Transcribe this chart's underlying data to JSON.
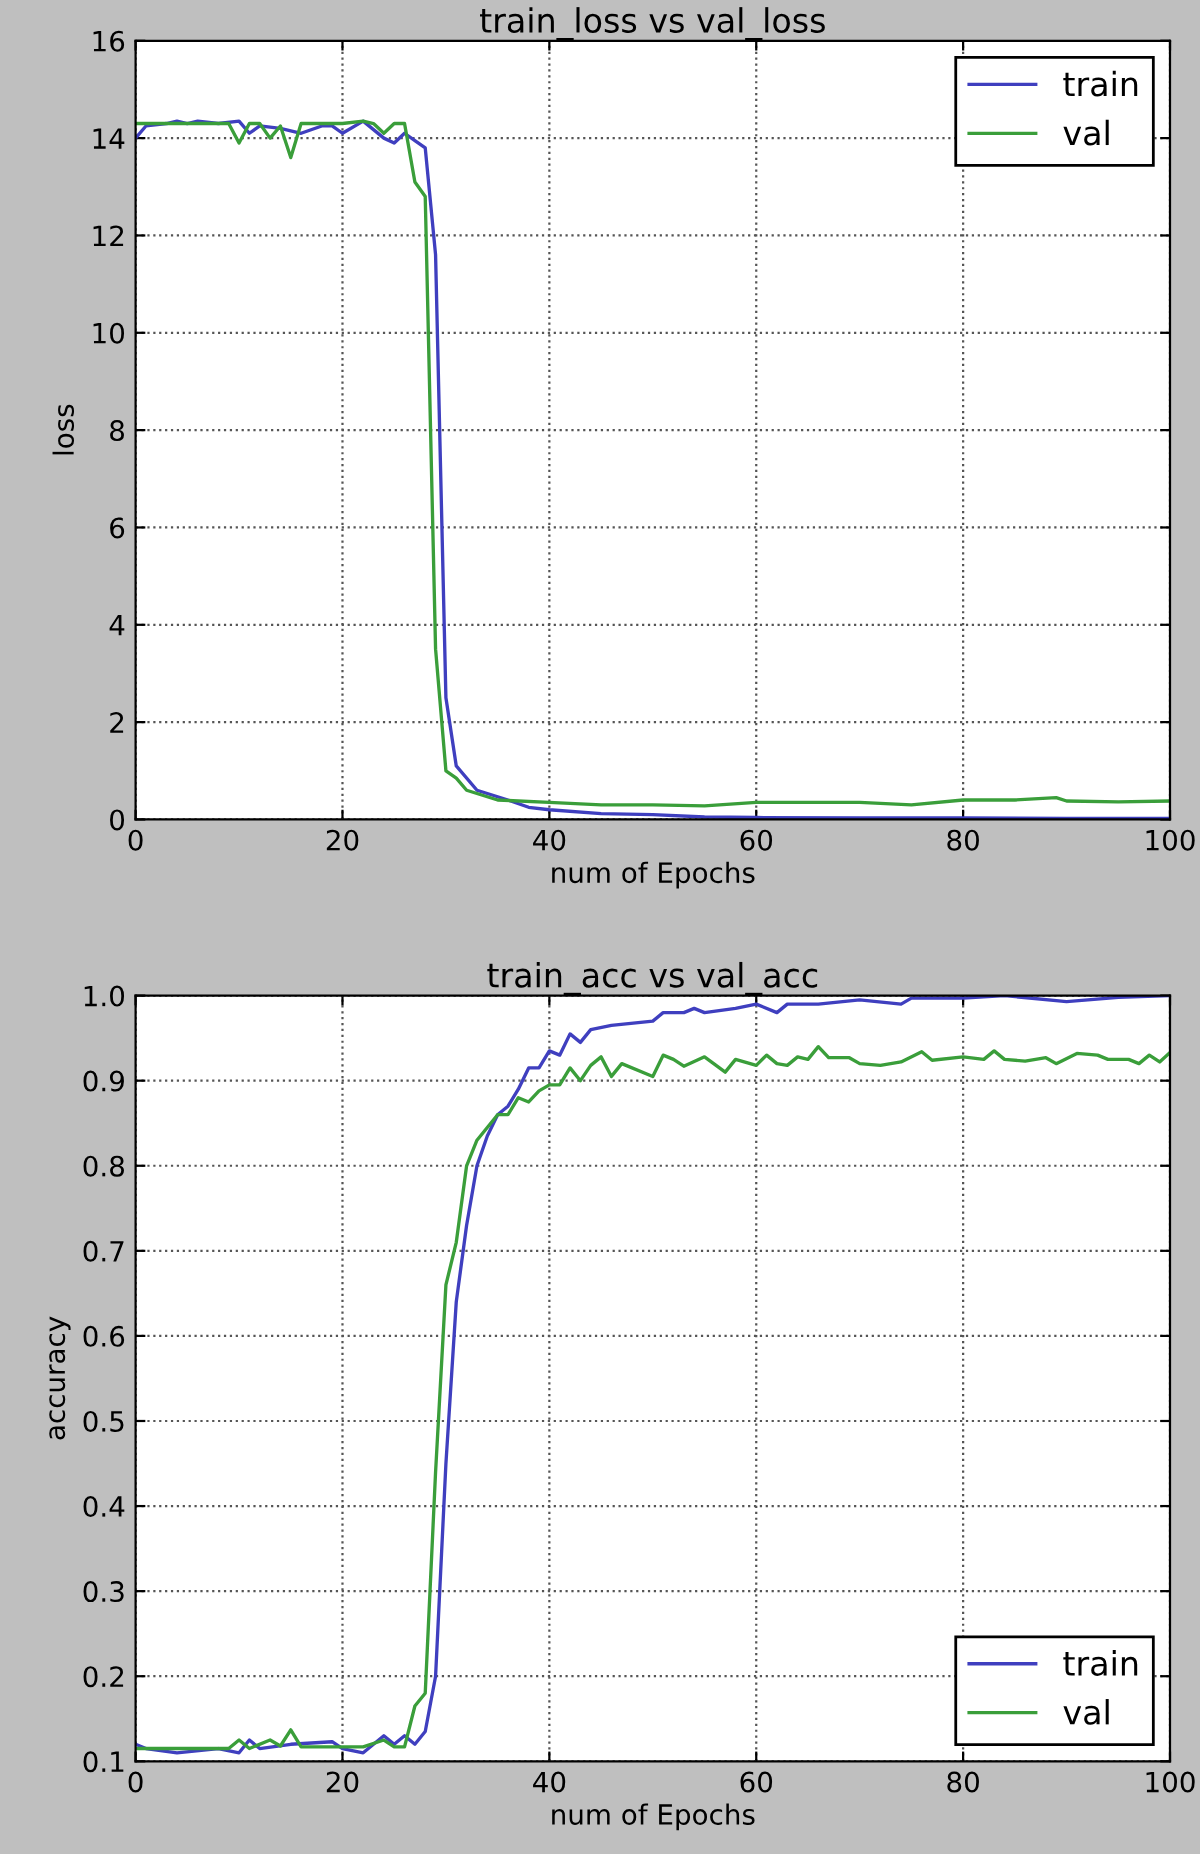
{
  "chart_data": [
    {
      "type": "line",
      "title": "train_loss vs val_loss",
      "xlabel": "num of Epochs",
      "ylabel": "loss",
      "xlim": [
        0,
        100
      ],
      "xticks": [
        0,
        20,
        40,
        60,
        80,
        100
      ],
      "ylim": [
        0,
        16
      ],
      "yticks": [
        0,
        2,
        4,
        6,
        8,
        10,
        12,
        14,
        16
      ],
      "grid": true,
      "legend": "top right",
      "line_style": "solid",
      "series": [
        {
          "name": "train",
          "color": "#3f3fbf",
          "x": [
            0,
            1,
            3,
            4,
            5,
            6,
            8,
            10,
            11,
            12,
            14,
            16,
            18,
            19,
            20,
            22,
            24,
            25,
            26,
            27,
            28,
            29,
            30,
            31,
            33,
            36,
            38,
            40,
            45,
            50,
            55,
            60,
            70,
            80,
            90,
            100
          ],
          "values": [
            14.0,
            14.25,
            14.3,
            14.35,
            14.3,
            14.35,
            14.3,
            14.35,
            14.1,
            14.25,
            14.2,
            14.1,
            14.25,
            14.25,
            14.1,
            14.35,
            14.0,
            13.9,
            14.1,
            13.95,
            13.8,
            11.6,
            2.5,
            1.1,
            0.6,
            0.4,
            0.25,
            0.2,
            0.12,
            0.1,
            0.05,
            0.04,
            0.03,
            0.03,
            0.02,
            0.02
          ]
        },
        {
          "name": "val",
          "color": "#3a9e3a",
          "x": [
            0,
            5,
            9,
            10,
            11,
            12,
            13,
            14,
            15,
            16,
            18,
            20,
            22,
            23,
            24,
            25,
            26,
            27,
            28,
            29,
            30,
            31,
            32,
            35,
            40,
            45,
            50,
            55,
            60,
            65,
            70,
            75,
            80,
            85,
            89,
            90,
            95,
            100
          ],
          "values": [
            14.3,
            14.3,
            14.3,
            13.9,
            14.3,
            14.3,
            14.0,
            14.25,
            13.6,
            14.3,
            14.3,
            14.3,
            14.35,
            14.3,
            14.1,
            14.3,
            14.3,
            13.1,
            12.8,
            3.5,
            1.0,
            0.85,
            0.6,
            0.4,
            0.35,
            0.3,
            0.3,
            0.28,
            0.35,
            0.35,
            0.35,
            0.3,
            0.4,
            0.4,
            0.45,
            0.38,
            0.36,
            0.38
          ]
        }
      ]
    },
    {
      "type": "line",
      "title": "train_acc vs val_acc",
      "xlabel": "num of Epochs",
      "ylabel": "accuracy",
      "xlim": [
        0,
        100
      ],
      "xticks": [
        0,
        20,
        40,
        60,
        80,
        100
      ],
      "ylim": [
        0.1,
        1.0
      ],
      "yticks": [
        0.1,
        0.2,
        0.3,
        0.4,
        0.5,
        0.6,
        0.7,
        0.8,
        0.9,
        {
          "value": 1,
          "label": "1.0"
        }
      ],
      "grid": true,
      "legend": "bottom right",
      "line_style": "solid",
      "series": [
        {
          "name": "train",
          "color": "#3f3fbf",
          "x": [
            0,
            1,
            4,
            8,
            10,
            11,
            12,
            15,
            19,
            20,
            22,
            23,
            24,
            25,
            26,
            27,
            28,
            29,
            30,
            31,
            32,
            33,
            34,
            35,
            36,
            37,
            38,
            39,
            40,
            41,
            42,
            43,
            44,
            46,
            50,
            51,
            53,
            54,
            55,
            58,
            60,
            62,
            63,
            66,
            70,
            74,
            75,
            80,
            84,
            90,
            95,
            100
          ],
          "values": [
            0.12,
            0.115,
            0.11,
            0.115,
            0.11,
            0.125,
            0.115,
            0.12,
            0.123,
            0.115,
            0.11,
            0.12,
            0.13,
            0.12,
            0.13,
            0.12,
            0.135,
            0.2,
            0.45,
            0.64,
            0.73,
            0.8,
            0.835,
            0.86,
            0.87,
            0.89,
            0.915,
            0.915,
            0.935,
            0.93,
            0.955,
            0.945,
            0.96,
            0.965,
            0.97,
            0.98,
            0.98,
            0.985,
            0.98,
            0.985,
            0.99,
            0.98,
            0.99,
            0.99,
            0.995,
            0.99,
            0.997,
            0.997,
            1.0,
            0.993,
            0.998,
            1.0
          ]
        },
        {
          "name": "val",
          "color": "#3a9e3a",
          "x": [
            0,
            9,
            10,
            11,
            13,
            14,
            15,
            16,
            22,
            24,
            25,
            26,
            27,
            28,
            29,
            30,
            31,
            32,
            33,
            34,
            35,
            36,
            37,
            38,
            39,
            40,
            41,
            42,
            43,
            44,
            45,
            46,
            47,
            50,
            51,
            52,
            53,
            55,
            57,
            58,
            60,
            61,
            62,
            63,
            64,
            65,
            66,
            67,
            69,
            70,
            72,
            74,
            76,
            77,
            80,
            82,
            83,
            84,
            86,
            88,
            89,
            91,
            93,
            94,
            96,
            97,
            98,
            99,
            100
          ],
          "values": [
            0.115,
            0.115,
            0.125,
            0.115,
            0.125,
            0.118,
            0.137,
            0.117,
            0.117,
            0.125,
            0.117,
            0.117,
            0.165,
            0.18,
            0.44,
            0.66,
            0.71,
            0.8,
            0.83,
            0.845,
            0.86,
            0.86,
            0.88,
            0.875,
            0.888,
            0.895,
            0.895,
            0.915,
            0.9,
            0.918,
            0.928,
            0.905,
            0.92,
            0.905,
            0.93,
            0.925,
            0.917,
            0.928,
            0.91,
            0.925,
            0.918,
            0.93,
            0.92,
            0.918,
            0.928,
            0.925,
            0.94,
            0.927,
            0.927,
            0.92,
            0.918,
            0.922,
            0.934,
            0.924,
            0.928,
            0.925,
            0.935,
            0.925,
            0.923,
            0.927,
            0.92,
            0.932,
            0.93,
            0.925,
            0.925,
            0.92,
            0.93,
            0.922,
            0.933
          ]
        }
      ]
    }
  ]
}
